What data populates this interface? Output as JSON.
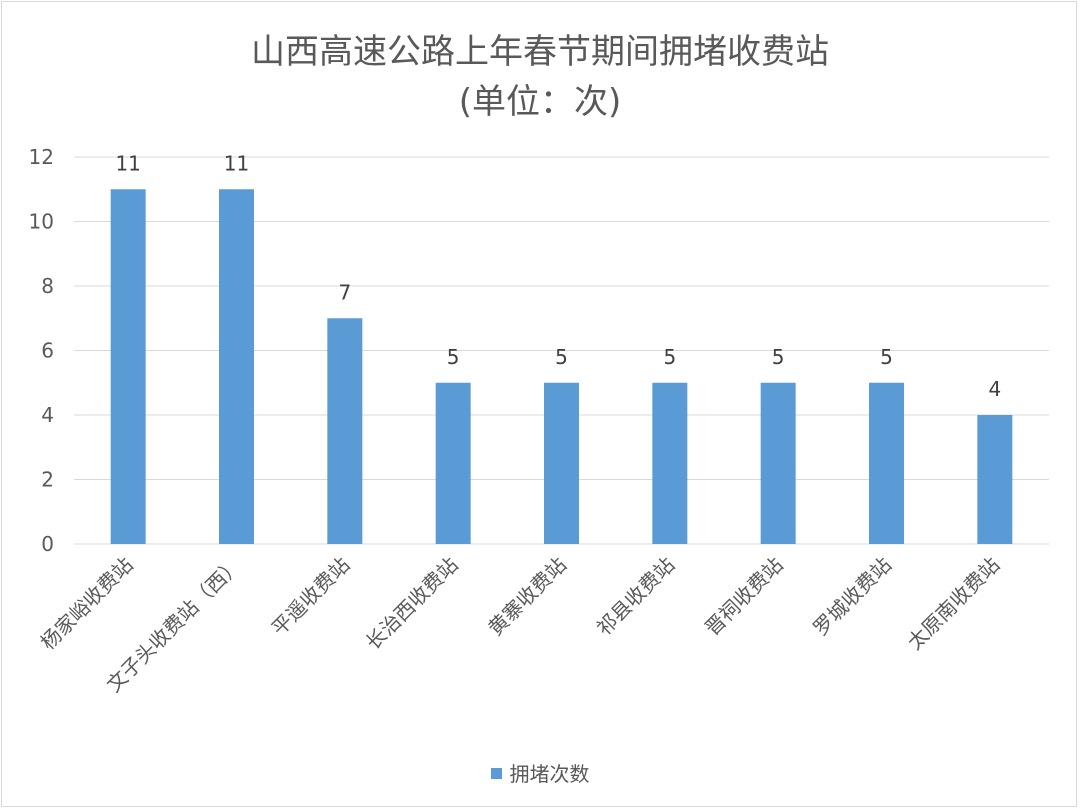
{
  "chart_data": {
    "type": "bar",
    "title": "山西高速公路上年春节期间拥堵收费站",
    "subtitle": "(单位：次)",
    "categories": [
      "杨家峪收费站",
      "文子头收费站（西）",
      "平遥收费站",
      "长治西收费站",
      "黄寨收费站",
      "祁县收费站",
      "晋祠收费站",
      "罗城收费站",
      "太原南收费站"
    ],
    "series": [
      {
        "name": "拥堵次数",
        "values": [
          11,
          11,
          7,
          5,
          5,
          5,
          5,
          5,
          4
        ],
        "color": "#5b9bd5"
      }
    ],
    "ylim": [
      0,
      12
    ],
    "yticks": [
      0,
      2,
      4,
      6,
      8,
      10,
      12
    ],
    "grid": true,
    "legend_position": "bottom",
    "data_labels": true
  }
}
